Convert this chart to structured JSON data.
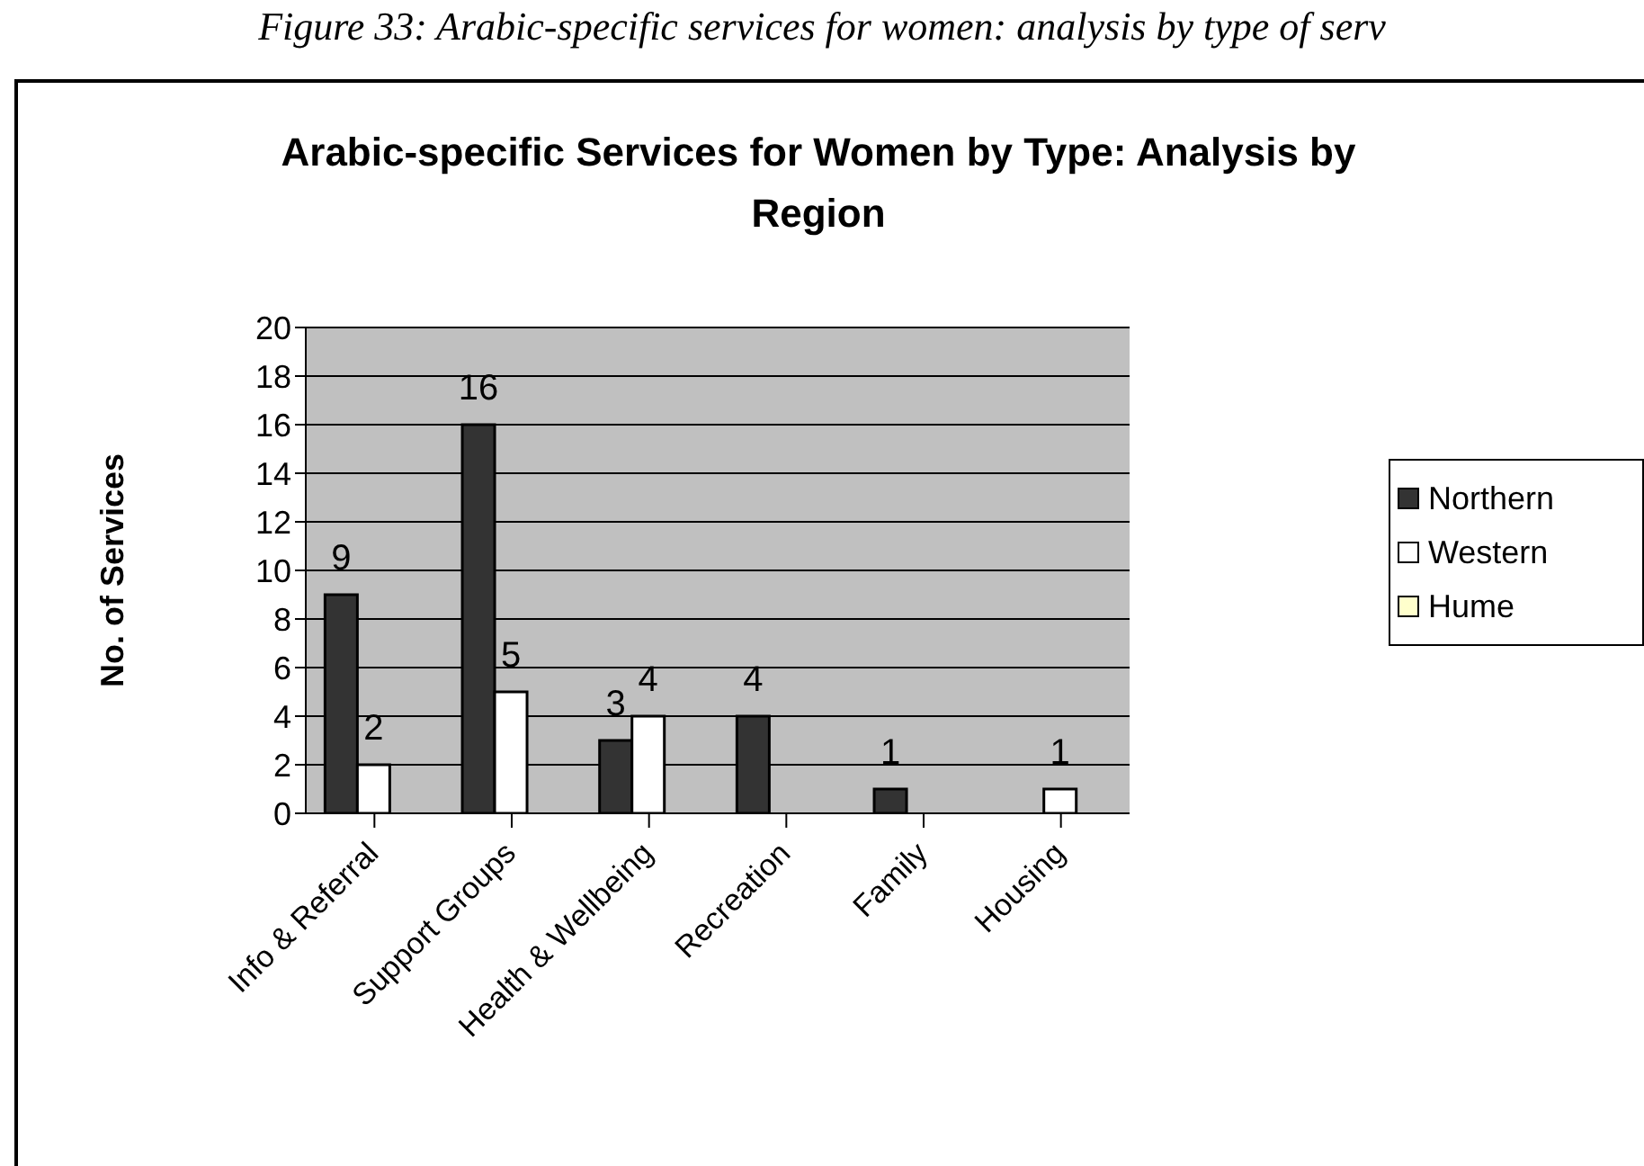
{
  "chart_data": {
    "type": "bar",
    "title": "Arabic-specific Services for Women by Type: Analysis by Region",
    "ylabel": "No. of Services",
    "annotations": [
      "Figure 33: Arabic-specific services for women: analysis by type of serv"
    ],
    "categories": [
      "Info & Referral",
      "Support Groups",
      "Health & Wellbeing",
      "Recreation",
      "Family",
      "Housing"
    ],
    "series": [
      {
        "name": "Northern",
        "color": "#333333",
        "values": [
          9,
          16,
          3,
          4,
          1,
          null
        ]
      },
      {
        "name": "Western",
        "color": "#ffffff",
        "values": [
          2,
          5,
          4,
          null,
          null,
          1
        ]
      },
      {
        "name": "Hume",
        "color": "#ffffcc",
        "values": [
          null,
          null,
          null,
          null,
          null,
          null
        ]
      }
    ],
    "ylim": [
      0,
      20
    ],
    "yticks": [
      0,
      2,
      4,
      6,
      8,
      10,
      12,
      14,
      16,
      18,
      20
    ],
    "grid": "y",
    "legend": "right",
    "data_labels": true
  }
}
